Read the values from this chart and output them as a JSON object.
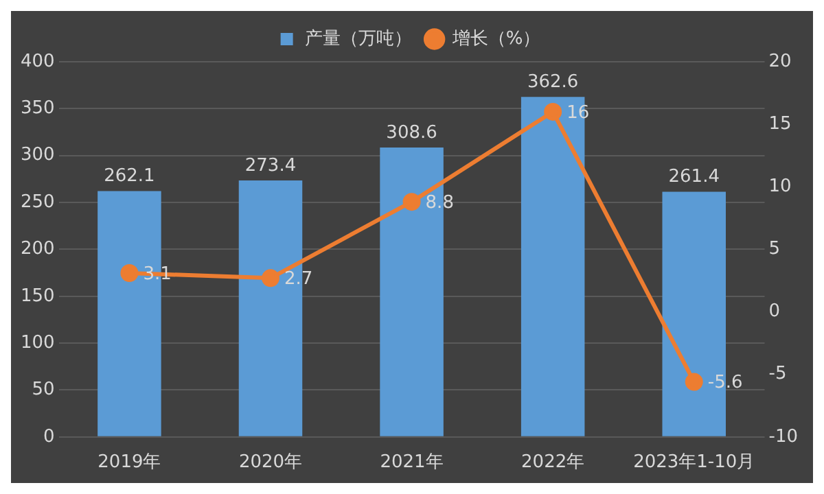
{
  "chart_data": {
    "type": "bar",
    "categories": [
      "2019年",
      "2020年",
      "2021年",
      "2022年",
      "2023年1-10月"
    ],
    "series": [
      {
        "name": "产量（万吨）",
        "color": "#5b9bd5",
        "values": [
          262.1,
          273.4,
          308.6,
          362.6,
          261.4
        ]
      },
      {
        "name": "增长（%）",
        "type": "line",
        "axis": "y2",
        "color": "#ed7d31",
        "values": [
          3.1,
          2.7,
          8.8,
          16,
          -5.6
        ]
      }
    ],
    "ylim": [
      0,
      400
    ],
    "yticks": [
      0,
      50,
      100,
      150,
      200,
      250,
      300,
      350,
      400
    ],
    "y2lim": [
      -10,
      20
    ],
    "y2ticks": [
      -10,
      -5,
      0,
      5,
      10,
      15,
      20
    ],
    "grid": "y",
    "legend": "top",
    "marker": "circle",
    "line_style": "solid",
    "data_labels": true
  }
}
